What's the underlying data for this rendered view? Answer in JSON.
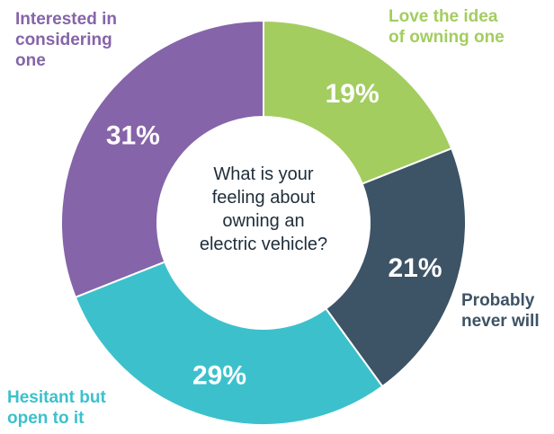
{
  "chart_data": {
    "type": "pie",
    "title": "What is your feeling about owning an electric vehicle?",
    "title_lines": [
      "What is your",
      "feeling about",
      "owning an",
      "electric vehicle?"
    ],
    "slices": [
      {
        "label": "Love the idea of owning one",
        "label_lines": [
          "Love the idea",
          "of owning one"
        ],
        "value": 19,
        "value_label": "19%",
        "color": "#a3cd5f"
      },
      {
        "label": "Probably never will",
        "label_lines": [
          "Probably",
          "never will"
        ],
        "value": 21,
        "value_label": "21%",
        "color": "#3d5366"
      },
      {
        "label": "Hesitant but open to it",
        "label_lines": [
          "Hesitant but",
          "open to it"
        ],
        "value": 29,
        "value_label": "29%",
        "color": "#3cc1cc"
      },
      {
        "label": "Interested in considering one",
        "label_lines": [
          "Interested in",
          "considering",
          "one"
        ],
        "value": 31,
        "value_label": "31%",
        "color": "#8564a9"
      }
    ],
    "legend": "none",
    "hole": "donut"
  }
}
